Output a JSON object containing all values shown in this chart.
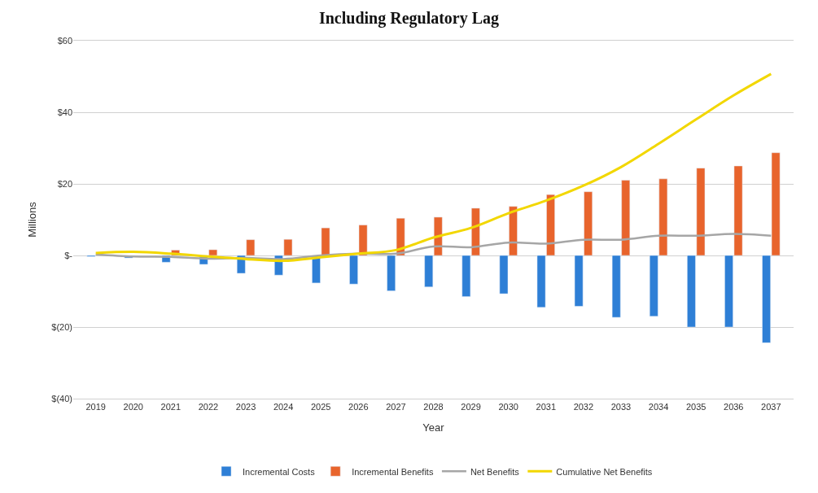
{
  "chart_data": {
    "type": "bar",
    "title": "Including Regulatory Lag",
    "xlabel": "Year",
    "ylabel": "Millions",
    "categories": [
      "2019",
      "2020",
      "2021",
      "2022",
      "2023",
      "2024",
      "2025",
      "2026",
      "2027",
      "2028",
      "2029",
      "2030",
      "2031",
      "2032",
      "2033",
      "2034",
      "2035",
      "2036",
      "2037"
    ],
    "series": [
      {
        "name": "Incremental Costs",
        "color": "#2e7fd6",
        "values": [
          -0.3,
          -0.7,
          -1.9,
          -2.5,
          -5,
          -5.5,
          -7.7,
          -8,
          -9.9,
          -8.8,
          -11.5,
          -10.7,
          -14.5,
          -14.2,
          -17.3,
          -17,
          -20,
          -20,
          -24.4
        ]
      },
      {
        "name": "Incremental Benefits",
        "color": "#e8642c",
        "values": [
          null,
          null,
          1.5,
          1.6,
          4.4,
          4.5,
          7.7,
          8.5,
          10.4,
          10.7,
          13.2,
          13.7,
          17,
          17.8,
          21,
          21.4,
          24.4,
          25,
          28.7
        ]
      },
      {
        "name": "Net Benefits",
        "type": "line",
        "color": "#a6a6a6",
        "values": [
          0.3,
          -0.3,
          -0.4,
          -0.9,
          -0.7,
          -1,
          0,
          0.5,
          0.5,
          2.5,
          2.3,
          3.6,
          3.3,
          4.4,
          4.4,
          5.5,
          5.5,
          6,
          5.5
        ]
      },
      {
        "name": "Cumulative Net Benefits",
        "type": "line",
        "color": "#f2d700",
        "values": [
          0.7,
          1,
          0.5,
          -0.3,
          -1,
          -1.5,
          -0.5,
          0.5,
          1.5,
          5,
          7.7,
          11.8,
          15.3,
          19.5,
          24.7,
          31.2,
          38,
          44.7,
          50.7
        ]
      }
    ],
    "ylim": [
      -40,
      60
    ],
    "yticks": [
      {
        "value": -40,
        "label": "$(40)"
      },
      {
        "value": -20,
        "label": "$(20)"
      },
      {
        "value": 0,
        "label": "$-"
      },
      {
        "value": 20,
        "label": "$20"
      },
      {
        "value": 40,
        "label": "$40"
      },
      {
        "value": 60,
        "label": "$60"
      }
    ],
    "grid": "y",
    "legend": "bottom",
    "marker": "none",
    "line_style": "solid"
  }
}
